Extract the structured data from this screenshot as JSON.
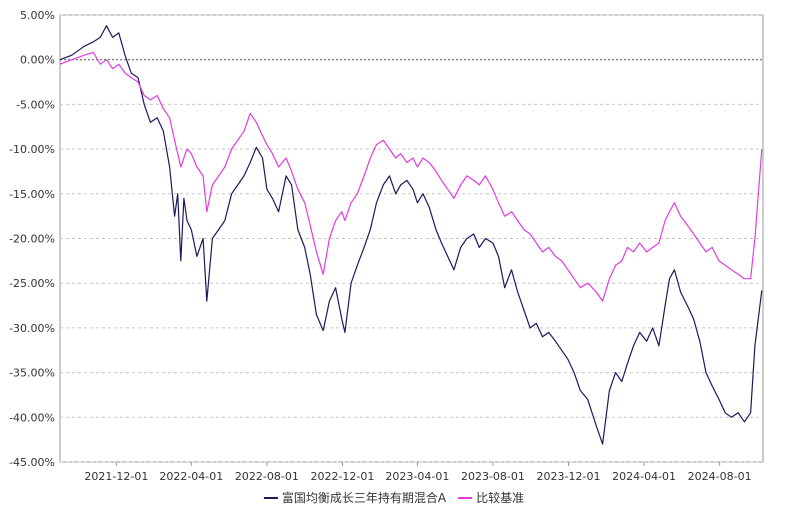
{
  "chart_data": {
    "type": "line",
    "y_ticks": [
      "5.00%",
      "0.00%",
      "-5.00%",
      "-10.00%",
      "-15.00%",
      "-20.00%",
      "-25.00%",
      "-30.00%",
      "-35.00%",
      "-40.00%",
      "-45.00%"
    ],
    "y_tick_values": [
      5,
      0,
      -5,
      -10,
      -15,
      -20,
      -25,
      -30,
      -35,
      -40,
      -45
    ],
    "x_ticks": [
      "2021-12-01",
      "2022-04-01",
      "2022-08-01",
      "2022-12-01",
      "2023-04-01",
      "2023-08-01",
      "2023-12-01",
      "2024-04-01",
      "2024-08-01"
    ],
    "x_range": [
      "2021-09-01",
      "2024-10-10"
    ],
    "ylim": [
      -45,
      5
    ],
    "grid": true,
    "zero_line": true,
    "legend_position": "bottom-center",
    "series": [
      {
        "name": "富国均衡成长三年持有期混合A",
        "color": "#1a1a5e",
        "points": [
          [
            "2021-09-01",
            0.0
          ],
          [
            "2021-09-20",
            0.5
          ],
          [
            "2021-10-10",
            1.5
          ],
          [
            "2021-10-25",
            2.0
          ],
          [
            "2021-11-05",
            2.5
          ],
          [
            "2021-11-15",
            3.8
          ],
          [
            "2021-11-25",
            2.5
          ],
          [
            "2021-12-05",
            3.0
          ],
          [
            "2021-12-15",
            0.5
          ],
          [
            "2021-12-25",
            -1.5
          ],
          [
            "2022-01-05",
            -2.0
          ],
          [
            "2022-01-15",
            -5.0
          ],
          [
            "2022-01-25",
            -7.0
          ],
          [
            "2022-02-05",
            -6.5
          ],
          [
            "2022-02-15",
            -8.0
          ],
          [
            "2022-02-25",
            -12.0
          ],
          [
            "2022-03-05",
            -17.5
          ],
          [
            "2022-03-10",
            -15.0
          ],
          [
            "2022-03-15",
            -22.5
          ],
          [
            "2022-03-20",
            -15.5
          ],
          [
            "2022-03-25",
            -18.0
          ],
          [
            "2022-04-01",
            -19.0
          ],
          [
            "2022-04-10",
            -22.0
          ],
          [
            "2022-04-20",
            -20.0
          ],
          [
            "2022-04-26",
            -27.0
          ],
          [
            "2022-05-05",
            -20.0
          ],
          [
            "2022-05-15",
            -19.0
          ],
          [
            "2022-05-25",
            -18.0
          ],
          [
            "2022-06-05",
            -15.0
          ],
          [
            "2022-06-15",
            -14.0
          ],
          [
            "2022-06-25",
            -13.0
          ],
          [
            "2022-07-05",
            -11.5
          ],
          [
            "2022-07-15",
            -9.8
          ],
          [
            "2022-07-25",
            -11.0
          ],
          [
            "2022-08-01",
            -14.5
          ],
          [
            "2022-08-10",
            -15.5
          ],
          [
            "2022-08-20",
            -17.0
          ],
          [
            "2022-09-01",
            -13.0
          ],
          [
            "2022-09-10",
            -14.0
          ],
          [
            "2022-09-20",
            -19.0
          ],
          [
            "2022-10-01",
            -21.0
          ],
          [
            "2022-10-10",
            -24.0
          ],
          [
            "2022-10-20",
            -28.5
          ],
          [
            "2022-10-31",
            -30.3
          ],
          [
            "2022-11-10",
            -27.0
          ],
          [
            "2022-11-20",
            -25.5
          ],
          [
            "2022-11-30",
            -29.0
          ],
          [
            "2022-12-05",
            -30.5
          ],
          [
            "2022-12-15",
            -25.0
          ],
          [
            "2022-12-25",
            -23.0
          ],
          [
            "2023-01-05",
            -21.0
          ],
          [
            "2023-01-15",
            -19.0
          ],
          [
            "2023-01-25",
            -16.0
          ],
          [
            "2023-02-05",
            -14.0
          ],
          [
            "2023-02-15",
            -13.0
          ],
          [
            "2023-02-25",
            -15.0
          ],
          [
            "2023-03-05",
            -14.0
          ],
          [
            "2023-03-15",
            -13.5
          ],
          [
            "2023-03-25",
            -14.5
          ],
          [
            "2023-04-01",
            -16.0
          ],
          [
            "2023-04-10",
            -15.0
          ],
          [
            "2023-04-20",
            -16.5
          ],
          [
            "2023-05-01",
            -19.0
          ],
          [
            "2023-05-10",
            -20.5
          ],
          [
            "2023-05-20",
            -22.0
          ],
          [
            "2023-05-30",
            -23.5
          ],
          [
            "2023-06-10",
            -21.0
          ],
          [
            "2023-06-20",
            -20.0
          ],
          [
            "2023-07-01",
            -19.5
          ],
          [
            "2023-07-10",
            -21.0
          ],
          [
            "2023-07-20",
            -20.0
          ],
          [
            "2023-08-01",
            -20.5
          ],
          [
            "2023-08-10",
            -22.0
          ],
          [
            "2023-08-20",
            -25.5
          ],
          [
            "2023-08-31",
            -23.5
          ],
          [
            "2023-09-10",
            -26.0
          ],
          [
            "2023-09-20",
            -28.0
          ],
          [
            "2023-09-30",
            -30.0
          ],
          [
            "2023-10-10",
            -29.5
          ],
          [
            "2023-10-20",
            -31.0
          ],
          [
            "2023-10-30",
            -30.5
          ],
          [
            "2023-11-10",
            -31.5
          ],
          [
            "2023-11-20",
            -32.5
          ],
          [
            "2023-11-30",
            -33.5
          ],
          [
            "2023-12-10",
            -35.0
          ],
          [
            "2023-12-20",
            -37.0
          ],
          [
            "2024-01-01",
            -38.0
          ],
          [
            "2024-01-15",
            -41.0
          ],
          [
            "2024-01-25",
            -43.0
          ],
          [
            "2024-02-05",
            -37.0
          ],
          [
            "2024-02-15",
            -35.0
          ],
          [
            "2024-02-25",
            -36.0
          ],
          [
            "2024-03-05",
            -34.0
          ],
          [
            "2024-03-15",
            -32.0
          ],
          [
            "2024-03-25",
            -30.5
          ],
          [
            "2024-04-05",
            -31.5
          ],
          [
            "2024-04-15",
            -30.0
          ],
          [
            "2024-04-25",
            -32.0
          ],
          [
            "2024-05-05",
            -27.5
          ],
          [
            "2024-05-12",
            -24.5
          ],
          [
            "2024-05-20",
            -23.5
          ],
          [
            "2024-05-30",
            -26.0
          ],
          [
            "2024-06-10",
            -27.5
          ],
          [
            "2024-06-20",
            -29.0
          ],
          [
            "2024-06-30",
            -31.5
          ],
          [
            "2024-07-10",
            -35.0
          ],
          [
            "2024-07-20",
            -36.5
          ],
          [
            "2024-07-31",
            -38.0
          ],
          [
            "2024-08-10",
            -39.5
          ],
          [
            "2024-08-20",
            -40.0
          ],
          [
            "2024-08-31",
            -39.5
          ],
          [
            "2024-09-10",
            -40.5
          ],
          [
            "2024-09-20",
            -39.5
          ],
          [
            "2024-09-27",
            -32.0
          ],
          [
            "2024-10-08",
            -25.8
          ]
        ]
      },
      {
        "name": "比较基准",
        "color": "#e23ce2",
        "points": [
          [
            "2021-09-01",
            -0.5
          ],
          [
            "2021-09-20",
            0.0
          ],
          [
            "2021-10-10",
            0.5
          ],
          [
            "2021-10-25",
            0.8
          ],
          [
            "2021-11-05",
            -0.5
          ],
          [
            "2021-11-15",
            0.0
          ],
          [
            "2021-11-25",
            -1.0
          ],
          [
            "2021-12-05",
            -0.5
          ],
          [
            "2021-12-15",
            -1.5
          ],
          [
            "2021-12-25",
            -2.0
          ],
          [
            "2022-01-05",
            -2.5
          ],
          [
            "2022-01-15",
            -4.0
          ],
          [
            "2022-01-25",
            -4.5
          ],
          [
            "2022-02-05",
            -4.0
          ],
          [
            "2022-02-15",
            -5.5
          ],
          [
            "2022-02-25",
            -6.5
          ],
          [
            "2022-03-05",
            -9.0
          ],
          [
            "2022-03-15",
            -12.0
          ],
          [
            "2022-03-25",
            -10.0
          ],
          [
            "2022-04-01",
            -10.5
          ],
          [
            "2022-04-10",
            -12.0
          ],
          [
            "2022-04-20",
            -13.0
          ],
          [
            "2022-04-26",
            -17.0
          ],
          [
            "2022-05-05",
            -14.0
          ],
          [
            "2022-05-15",
            -13.0
          ],
          [
            "2022-05-25",
            -12.0
          ],
          [
            "2022-06-05",
            -10.0
          ],
          [
            "2022-06-15",
            -9.0
          ],
          [
            "2022-06-25",
            -8.0
          ],
          [
            "2022-07-05",
            -6.0
          ],
          [
            "2022-07-15",
            -7.0
          ],
          [
            "2022-07-25",
            -8.5
          ],
          [
            "2022-08-01",
            -9.5
          ],
          [
            "2022-08-10",
            -10.5
          ],
          [
            "2022-08-20",
            -12.0
          ],
          [
            "2022-09-01",
            -11.0
          ],
          [
            "2022-09-10",
            -12.5
          ],
          [
            "2022-09-20",
            -14.5
          ],
          [
            "2022-10-01",
            -16.0
          ],
          [
            "2022-10-10",
            -18.5
          ],
          [
            "2022-10-20",
            -21.5
          ],
          [
            "2022-10-31",
            -24.0
          ],
          [
            "2022-11-10",
            -20.0
          ],
          [
            "2022-11-20",
            -18.0
          ],
          [
            "2022-11-30",
            -17.0
          ],
          [
            "2022-12-05",
            -18.0
          ],
          [
            "2022-12-15",
            -16.0
          ],
          [
            "2022-12-25",
            -15.0
          ],
          [
            "2023-01-05",
            -13.0
          ],
          [
            "2023-01-15",
            -11.0
          ],
          [
            "2023-01-25",
            -9.5
          ],
          [
            "2023-02-05",
            -9.0
          ],
          [
            "2023-02-15",
            -10.0
          ],
          [
            "2023-02-25",
            -11.0
          ],
          [
            "2023-03-05",
            -10.5
          ],
          [
            "2023-03-15",
            -11.5
          ],
          [
            "2023-03-25",
            -11.0
          ],
          [
            "2023-04-01",
            -12.0
          ],
          [
            "2023-04-10",
            -11.0
          ],
          [
            "2023-04-20",
            -11.5
          ],
          [
            "2023-05-01",
            -12.5
          ],
          [
            "2023-05-10",
            -13.5
          ],
          [
            "2023-05-20",
            -14.5
          ],
          [
            "2023-05-30",
            -15.5
          ],
          [
            "2023-06-10",
            -14.0
          ],
          [
            "2023-06-20",
            -13.0
          ],
          [
            "2023-07-01",
            -13.5
          ],
          [
            "2023-07-10",
            -14.0
          ],
          [
            "2023-07-20",
            -13.0
          ],
          [
            "2023-08-01",
            -14.5
          ],
          [
            "2023-08-10",
            -16.0
          ],
          [
            "2023-08-20",
            -17.5
          ],
          [
            "2023-08-31",
            -17.0
          ],
          [
            "2023-09-10",
            -18.0
          ],
          [
            "2023-09-20",
            -19.0
          ],
          [
            "2023-09-30",
            -19.5
          ],
          [
            "2023-10-10",
            -20.5
          ],
          [
            "2023-10-20",
            -21.5
          ],
          [
            "2023-10-30",
            -21.0
          ],
          [
            "2023-11-10",
            -22.0
          ],
          [
            "2023-11-20",
            -22.5
          ],
          [
            "2023-11-30",
            -23.5
          ],
          [
            "2023-12-10",
            -24.5
          ],
          [
            "2023-12-20",
            -25.5
          ],
          [
            "2024-01-01",
            -25.0
          ],
          [
            "2024-01-15",
            -26.0
          ],
          [
            "2024-01-25",
            -27.0
          ],
          [
            "2024-02-05",
            -24.5
          ],
          [
            "2024-02-15",
            -23.0
          ],
          [
            "2024-02-25",
            -22.5
          ],
          [
            "2024-03-05",
            -21.0
          ],
          [
            "2024-03-15",
            -21.5
          ],
          [
            "2024-03-25",
            -20.5
          ],
          [
            "2024-04-05",
            -21.5
          ],
          [
            "2024-04-15",
            -21.0
          ],
          [
            "2024-04-25",
            -20.5
          ],
          [
            "2024-05-05",
            -18.0
          ],
          [
            "2024-05-12",
            -17.0
          ],
          [
            "2024-05-20",
            -16.0
          ],
          [
            "2024-05-30",
            -17.5
          ],
          [
            "2024-06-10",
            -18.5
          ],
          [
            "2024-06-20",
            -19.5
          ],
          [
            "2024-06-30",
            -20.5
          ],
          [
            "2024-07-10",
            -21.5
          ],
          [
            "2024-07-20",
            -21.0
          ],
          [
            "2024-07-31",
            -22.5
          ],
          [
            "2024-08-10",
            -23.0
          ],
          [
            "2024-08-20",
            -23.5
          ],
          [
            "2024-08-31",
            -24.0
          ],
          [
            "2024-09-10",
            -24.5
          ],
          [
            "2024-09-20",
            -24.5
          ],
          [
            "2024-09-27",
            -20.0
          ],
          [
            "2024-10-08",
            -10.0
          ]
        ]
      }
    ]
  }
}
